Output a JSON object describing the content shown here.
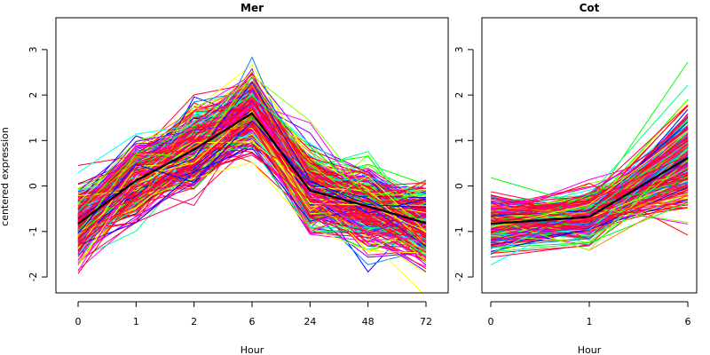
{
  "chart_data": {
    "type": "line",
    "ylabel": "centered expression",
    "panels": [
      {
        "title": "Mer",
        "xlabel": "Hour",
        "categories": [
          "0",
          "1",
          "2",
          "6",
          "24",
          "48",
          "72"
        ],
        "ylim": [
          -2.35,
          3.7
        ],
        "yticks": [
          -2,
          -1,
          0,
          1,
          2,
          3
        ],
        "mean_series": {
          "color": "#000000",
          "values": [
            -0.83,
            0.12,
            0.8,
            1.6,
            -0.1,
            -0.45,
            -0.82
          ]
        },
        "profile_series_colors": [
          "#ff0000",
          "#ff8000",
          "#ffff00",
          "#80ff00",
          "#00ff00",
          "#00ff80",
          "#00ffff",
          "#0080ff",
          "#0000ff",
          "#8000ff",
          "#ff00ff",
          "#ff0080"
        ],
        "highlight_color": "#ff0040",
        "profiles_shown_estimate": 400
      },
      {
        "title": "Cot",
        "xlabel": "Hour",
        "categories": [
          "0",
          "1",
          "6"
        ],
        "ylim": [
          -2.35,
          3.7
        ],
        "yticks": [
          -2,
          -1,
          0,
          1,
          2,
          3
        ],
        "mean_series": {
          "color": "#000000",
          "values": [
            -0.83,
            -0.68,
            0.62
          ]
        },
        "profile_series_colors": [
          "#ff0000",
          "#ff8000",
          "#ffff00",
          "#80ff00",
          "#00ff00",
          "#00ff80",
          "#00ffff",
          "#0080ff",
          "#0000ff",
          "#8000ff",
          "#ff00ff",
          "#ff0080"
        ],
        "highlight_color": "#ff0040",
        "profiles_shown_estimate": 300
      }
    ]
  }
}
